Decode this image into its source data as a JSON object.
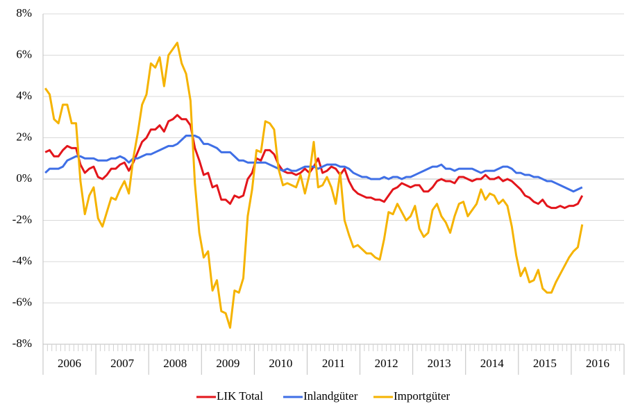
{
  "chart_data": {
    "type": "line",
    "categories": [
      null,
      null,
      null,
      null,
      null,
      null,
      "2006",
      null,
      null,
      null,
      null,
      null,
      null,
      null,
      null,
      null,
      null,
      null,
      "2007",
      null,
      null,
      null,
      null,
      null,
      null,
      null,
      null,
      null,
      null,
      null,
      "2008",
      null,
      null,
      null,
      null,
      null,
      null,
      null,
      null,
      null,
      null,
      null,
      "2009",
      null,
      null,
      null,
      null,
      null,
      null,
      null,
      null,
      null,
      null,
      null,
      "2010",
      null,
      null,
      null,
      null,
      null,
      null,
      null,
      null,
      null,
      null,
      null,
      "2011",
      null,
      null,
      null,
      null,
      null,
      null,
      null,
      null,
      null,
      null,
      null,
      "2012",
      null,
      null,
      null,
      null,
      null,
      null,
      null,
      null,
      null,
      null,
      null,
      "2013",
      null,
      null,
      null,
      null,
      null,
      null,
      null,
      null,
      null,
      null,
      null,
      "2014",
      null,
      null,
      null,
      null,
      null,
      null,
      null,
      null,
      null,
      null,
      null,
      "2015",
      null,
      null,
      null,
      null,
      null,
      null,
      null,
      null,
      null,
      null,
      null,
      "2016",
      null,
      null,
      null,
      null,
      null
    ],
    "series": [
      {
        "name": "LIK Total",
        "color": "#e3151b",
        "values": [
          1.3,
          1.4,
          1.1,
          1.1,
          1.4,
          1.6,
          1.5,
          1.5,
          0.7,
          0.3,
          0.5,
          0.6,
          0.1,
          0.0,
          0.2,
          0.5,
          0.5,
          0.7,
          0.8,
          0.4,
          0.8,
          1.3,
          1.8,
          2.0,
          2.4,
          2.4,
          2.6,
          2.3,
          2.8,
          2.9,
          3.1,
          2.9,
          2.9,
          2.6,
          1.5,
          0.9,
          0.2,
          0.3,
          -0.4,
          -0.3,
          -1.0,
          -1.0,
          -1.2,
          -0.8,
          -0.9,
          -0.8,
          0.0,
          0.3,
          1.0,
          0.9,
          1.4,
          1.4,
          1.2,
          0.7,
          0.4,
          0.3,
          0.3,
          0.2,
          0.3,
          0.5,
          0.3,
          0.6,
          1.0,
          0.3,
          0.4,
          0.6,
          0.5,
          0.2,
          0.5,
          -0.1,
          -0.5,
          -0.7,
          -0.8,
          -0.9,
          -0.9,
          -1.0,
          -1.0,
          -1.1,
          -0.8,
          -0.5,
          -0.4,
          -0.2,
          -0.3,
          -0.4,
          -0.3,
          -0.3,
          -0.6,
          -0.6,
          -0.4,
          -0.1,
          0.0,
          -0.1,
          -0.1,
          -0.2,
          0.1,
          0.1,
          0.0,
          -0.1,
          0.0,
          0.0,
          0.2,
          0.0,
          0.0,
          0.1,
          -0.1,
          0.0,
          -0.1,
          -0.3,
          -0.5,
          -0.8,
          -0.9,
          -1.1,
          -1.2,
          -1.0,
          -1.3,
          -1.4,
          -1.4,
          -1.3,
          -1.4,
          -1.3,
          -1.3,
          -1.2,
          -0.8,
          null,
          null,
          null,
          null,
          null,
          null,
          null,
          null,
          null
        ]
      },
      {
        "name": "Inlandgüter",
        "color": "#3f6fe6",
        "values": [
          0.3,
          0.5,
          0.5,
          0.5,
          0.6,
          0.9,
          1.0,
          1.1,
          1.1,
          1.0,
          1.0,
          1.0,
          0.9,
          0.9,
          0.9,
          1.0,
          1.0,
          1.1,
          1.0,
          0.8,
          1.0,
          1.0,
          1.1,
          1.2,
          1.2,
          1.3,
          1.4,
          1.5,
          1.6,
          1.6,
          1.7,
          1.9,
          2.1,
          2.1,
          2.1,
          2.0,
          1.7,
          1.7,
          1.6,
          1.5,
          1.3,
          1.3,
          1.3,
          1.1,
          0.9,
          0.9,
          0.8,
          0.8,
          0.8,
          0.8,
          0.8,
          0.7,
          0.6,
          0.5,
          0.4,
          0.5,
          0.4,
          0.4,
          0.5,
          0.6,
          0.6,
          0.6,
          0.5,
          0.6,
          0.7,
          0.7,
          0.7,
          0.6,
          0.6,
          0.5,
          0.3,
          0.2,
          0.1,
          0.1,
          0.0,
          0.0,
          0.0,
          0.1,
          0.0,
          0.1,
          0.1,
          0.0,
          0.1,
          0.1,
          0.2,
          0.3,
          0.4,
          0.5,
          0.6,
          0.6,
          0.7,
          0.5,
          0.5,
          0.4,
          0.5,
          0.5,
          0.5,
          0.5,
          0.4,
          0.3,
          0.4,
          0.4,
          0.4,
          0.5,
          0.6,
          0.6,
          0.5,
          0.3,
          0.3,
          0.2,
          0.2,
          0.1,
          0.1,
          0.0,
          -0.1,
          -0.1,
          -0.2,
          -0.3,
          -0.4,
          -0.5,
          -0.6,
          -0.5,
          -0.4,
          null,
          null,
          null,
          null,
          null,
          null,
          null,
          null,
          null
        ]
      },
      {
        "name": "Importgüter",
        "color": "#f5b300",
        "values": [
          4.4,
          4.1,
          2.9,
          2.7,
          3.6,
          3.6,
          2.7,
          2.7,
          -0.1,
          -1.7,
          -0.8,
          -0.4,
          -1.9,
          -2.3,
          -1.6,
          -0.9,
          -1.0,
          -0.5,
          -0.1,
          -0.7,
          1.0,
          2.2,
          3.6,
          4.1,
          5.6,
          5.4,
          5.9,
          4.5,
          6.0,
          6.3,
          6.6,
          5.6,
          5.1,
          3.8,
          -0.2,
          -2.6,
          -3.8,
          -3.5,
          -5.4,
          -4.9,
          -6.4,
          -6.5,
          -7.2,
          -5.4,
          -5.5,
          -4.8,
          -1.8,
          -0.5,
          1.4,
          1.3,
          2.8,
          2.7,
          2.4,
          0.5,
          -0.3,
          -0.2,
          -0.3,
          -0.4,
          0.2,
          -0.7,
          0.2,
          1.8,
          -0.4,
          -0.3,
          0.1,
          -0.4,
          -1.2,
          0.3,
          -2.0,
          -2.7,
          -3.3,
          -3.2,
          -3.4,
          -3.6,
          -3.6,
          -3.8,
          -3.9,
          -2.9,
          -1.6,
          -1.7,
          -1.2,
          -1.6,
          -2.0,
          -1.8,
          -1.3,
          -2.4,
          -2.8,
          -2.6,
          -1.5,
          -1.2,
          -1.8,
          -2.1,
          -2.6,
          -1.8,
          -1.2,
          -1.1,
          -1.8,
          -1.5,
          -1.2,
          -0.5,
          -1.0,
          -0.7,
          -0.8,
          -1.2,
          -1.0,
          -1.3,
          -2.3,
          -3.7,
          -4.7,
          -4.3,
          -5.0,
          -4.9,
          -4.4,
          -5.3,
          -5.5,
          -5.5,
          -5.0,
          -4.6,
          -4.2,
          -3.8,
          -3.5,
          -3.3,
          -2.2,
          null,
          null,
          null,
          null,
          null,
          null,
          null,
          null,
          null
        ]
      }
    ],
    "ylim": [
      -8,
      8
    ],
    "yticks": [
      {
        "value": -8,
        "label": "-8%"
      },
      {
        "value": -6,
        "label": "-6%"
      },
      {
        "value": -4,
        "label": "-4%"
      },
      {
        "value": -2,
        "label": "-2%"
      },
      {
        "value": 0,
        "label": "0%"
      },
      {
        "value": 2,
        "label": "2%"
      },
      {
        "value": 4,
        "label": "4%"
      },
      {
        "value": 6,
        "label": "6%"
      },
      {
        "value": 8,
        "label": "8%"
      }
    ],
    "grid": true,
    "legend": "bottom"
  }
}
